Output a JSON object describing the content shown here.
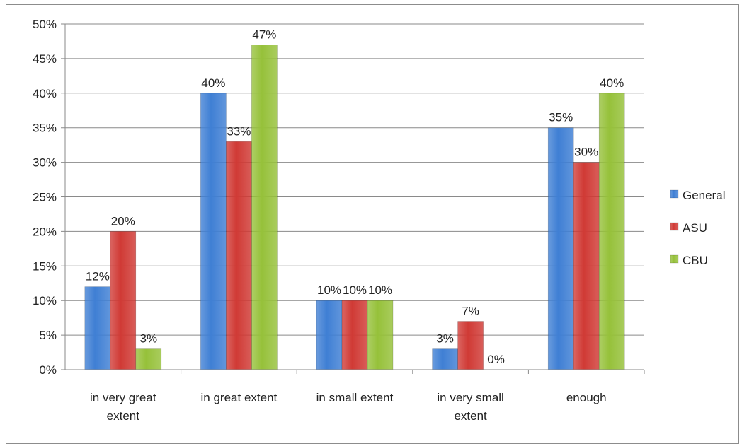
{
  "chart_data": {
    "type": "bar",
    "categories": [
      "in very great extent",
      "in great extent",
      "in small extent",
      "in very small extent",
      "enough"
    ],
    "category_lines": [
      [
        "in very great",
        "extent"
      ],
      [
        "in great extent"
      ],
      [
        "in small extent"
      ],
      [
        "in very small",
        "extent"
      ],
      [
        "enough"
      ]
    ],
    "series": [
      {
        "name": "General",
        "color": "#3f7fd4",
        "values": [
          12,
          40,
          10,
          3,
          35
        ],
        "labels": [
          "12%",
          "40%",
          "10%",
          "3%",
          "35%"
        ]
      },
      {
        "name": "ASU",
        "color": "#d03a35",
        "values": [
          20,
          33,
          10,
          7,
          30
        ],
        "labels": [
          "20%",
          "33%",
          "10%",
          "7%",
          "30%"
        ]
      },
      {
        "name": "CBU",
        "color": "#96c13a",
        "values": [
          3,
          47,
          10,
          0,
          40
        ],
        "labels": [
          "3%",
          "47%",
          "10%",
          "0%",
          "40%"
        ]
      }
    ],
    "ylim": [
      0,
      50
    ],
    "yticks": [
      0,
      5,
      10,
      15,
      20,
      25,
      30,
      35,
      40,
      45,
      50
    ],
    "ytick_labels": [
      "0%",
      "5%",
      "10%",
      "15%",
      "20%",
      "25%",
      "30%",
      "35%",
      "40%",
      "45%",
      "50%"
    ],
    "title": "",
    "xlabel": "",
    "ylabel": "",
    "grid": true,
    "legend_position": "right"
  }
}
